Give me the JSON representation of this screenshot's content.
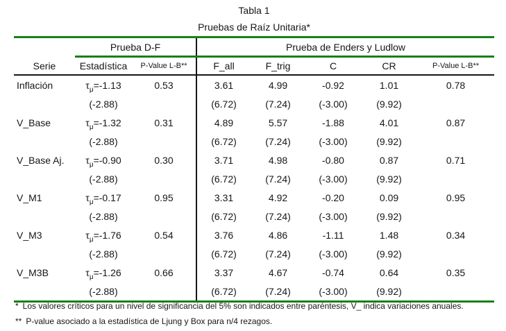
{
  "title": {
    "line1": "Tabla 1",
    "line2": "Pruebas de Raíz Unitaria*"
  },
  "colors": {
    "rule_green": "#178017",
    "rule_black": "#161616",
    "text": "#161616",
    "background": "#ffffff"
  },
  "table": {
    "group_headers": {
      "serie": "Serie",
      "df": "Prueba D-F",
      "enders": "Prueba de Enders y Ludlow"
    },
    "columns": {
      "estadistica": "Estadística",
      "pvalue_lb": "P-Value L-B**",
      "f_all": "F_all",
      "f_trig": "F_trig",
      "c": "C",
      "cr": "CR",
      "pvalue_lb2": "P-Value L-B**"
    },
    "tau": "τ",
    "mu": "μ",
    "rows": [
      {
        "serie": "Inflación",
        "stat": "=-1.13",
        "stat_crit": "(-2.88)",
        "pvalue_lb": "0.53",
        "f_all": "3.61",
        "f_all_crit": "(6.72)",
        "f_trig": "4.99",
        "f_trig_crit": "(7.24)",
        "c": "-0.92",
        "c_crit": "(-3.00)",
        "cr": "1.01",
        "cr_crit": "(9.92)",
        "pvalue_lb2": "0.78"
      },
      {
        "serie": "V_Base",
        "stat": "=-1.32",
        "stat_crit": "(-2.88)",
        "pvalue_lb": "0.31",
        "f_all": "4.89",
        "f_all_crit": "(6.72)",
        "f_trig": "5.57",
        "f_trig_crit": "(7.24)",
        "c": "-1.88",
        "c_crit": "(-3.00)",
        "cr": "4.01",
        "cr_crit": "(9.92)",
        "pvalue_lb2": "0.87"
      },
      {
        "serie": "V_Base Aj.",
        "stat": "=-0.90",
        "stat_crit": "(-2.88)",
        "pvalue_lb": "0.30",
        "f_all": "3.71",
        "f_all_crit": "(6.72)",
        "f_trig": "4.98",
        "f_trig_crit": "(7.24)",
        "c": "-0.80",
        "c_crit": "(-3.00)",
        "cr": "0.87",
        "cr_crit": "(9.92)",
        "pvalue_lb2": "0.71"
      },
      {
        "serie": "V_M1",
        "stat": "=-0.17",
        "stat_crit": "(-2.88)",
        "pvalue_lb": "0.95",
        "f_all": "3.31",
        "f_all_crit": "(6.72)",
        "f_trig": "4.92",
        "f_trig_crit": "(7.24)",
        "c": "-0.20",
        "c_crit": "(-3.00)",
        "cr": "0.09",
        "cr_crit": "(9.92)",
        "pvalue_lb2": "0.95"
      },
      {
        "serie": "V_M3",
        "stat": "=-1.76",
        "stat_crit": "(-2.88)",
        "pvalue_lb": "0.54",
        "f_all": "3.76",
        "f_all_crit": "(6.72)",
        "f_trig": "4.86",
        "f_trig_crit": "(7.24)",
        "c": "-1.11",
        "c_crit": "(-3.00)",
        "cr": "1.48",
        "cr_crit": "(9.92)",
        "pvalue_lb2": "0.34"
      },
      {
        "serie": "V_M3B",
        "stat": "=-1.26",
        "stat_crit": "(-2.88)",
        "pvalue_lb": "0.66",
        "f_all": "3.37",
        "f_all_crit": "(6.72)",
        "f_trig": "4.67",
        "f_trig_crit": "(7.24)",
        "c": "-0.74",
        "c_crit": "(-3.00)",
        "cr": "0.64",
        "cr_crit": "(9.92)",
        "pvalue_lb2": "0.35"
      }
    ]
  },
  "footnotes": [
    {
      "marker": "*",
      "text": "Los valores críticos para un nivel de significancia del 5% son indicados entre paréntesis, V_ indica variaciones anuales."
    },
    {
      "marker": "**",
      "text": "P-value asociado a la estadística de Ljung y Box para n/4 rezagos."
    }
  ]
}
